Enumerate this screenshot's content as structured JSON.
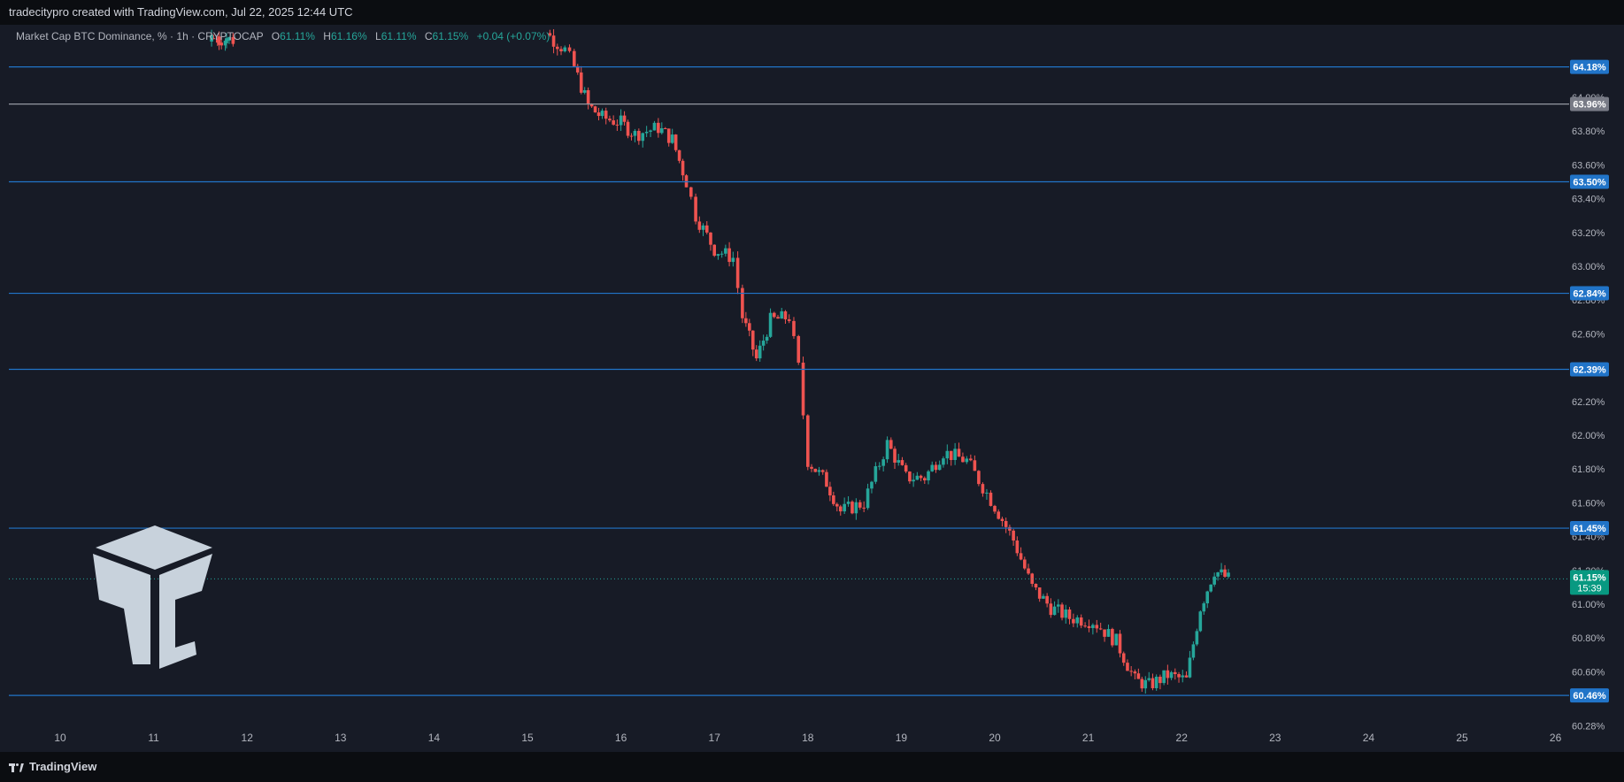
{
  "header": {
    "credit": "tradecitypro created with TradingView.com, Jul 22, 2025 12:44 UTC"
  },
  "legend": {
    "symbol": "Market Cap BTC Dominance, % · 1h · CRYPTOCAP",
    "open_label": "O",
    "open": "61.11%",
    "high_label": "H",
    "high": "61.16%",
    "low_label": "L",
    "low": "61.11%",
    "close_label": "C",
    "close": "61.15%",
    "change": "+0.04 (+0.07%)"
  },
  "footer": {
    "brand": "TradingView"
  },
  "colors": {
    "background": "#171b26",
    "up": "#26a69a",
    "down": "#ef5350",
    "level_line": "#2962ff",
    "level_label": "#2174c8",
    "price_label": "#089981",
    "grey_label": "#787b86",
    "logo": "#c8d2dc"
  },
  "chart_data": {
    "type": "candlestick",
    "y_axis": {
      "ticks": [
        "64.00%",
        "63.80%",
        "63.60%",
        "63.40%",
        "63.20%",
        "63.00%",
        "62.80%",
        "62.60%",
        "62.40%",
        "62.20%",
        "62.00%",
        "61.80%",
        "61.60%",
        "61.40%",
        "61.20%",
        "61.00%",
        "60.80%",
        "60.60%",
        "60.28%"
      ],
      "tick_values": [
        64.0,
        63.8,
        63.6,
        63.4,
        63.2,
        63.0,
        62.8,
        62.6,
        62.4,
        62.2,
        62.0,
        61.8,
        61.6,
        61.4,
        61.2,
        61.0,
        60.8,
        60.6,
        60.28
      ]
    },
    "x_axis": {
      "ticks": [
        "10",
        "11",
        "12",
        "13",
        "14",
        "15",
        "16",
        "17",
        "18",
        "19",
        "20",
        "21",
        "22",
        "23",
        "24",
        "25",
        "26"
      ],
      "tick_days": [
        10,
        11,
        12,
        13,
        14,
        15,
        16,
        17,
        18,
        19,
        20,
        21,
        22,
        23,
        24,
        25,
        26
      ]
    },
    "horizontal_levels": [
      {
        "label": "64.18%",
        "value": 64.18,
        "color": "#2174c8"
      },
      {
        "label": "63.96%",
        "value": 63.96,
        "color": "#787b86"
      },
      {
        "label": "63.50%",
        "value": 63.5,
        "color": "#2174c8"
      },
      {
        "label": "62.84%",
        "value": 62.84,
        "color": "#2174c8"
      },
      {
        "label": "62.39%",
        "value": 62.39,
        "color": "#2174c8"
      },
      {
        "label": "61.45%",
        "value": 61.45,
        "color": "#2174c8"
      },
      {
        "label": "60.46%",
        "value": 60.46,
        "color": "#2174c8"
      }
    ],
    "current_price": {
      "label": "61.15%",
      "countdown": "15:39",
      "value": 61.15
    },
    "trend_points": [
      {
        "day": 11.6,
        "price": 64.35
      },
      {
        "day": 11.85,
        "price": 64.34
      },
      {
        "day": 15.2,
        "price": 64.38
      },
      {
        "day": 15.4,
        "price": 64.28
      },
      {
        "day": 15.5,
        "price": 64.18
      },
      {
        "day": 15.65,
        "price": 63.95
      },
      {
        "day": 15.8,
        "price": 63.88
      },
      {
        "day": 16.0,
        "price": 63.85
      },
      {
        "day": 16.15,
        "price": 63.78
      },
      {
        "day": 16.4,
        "price": 63.82
      },
      {
        "day": 16.55,
        "price": 63.75
      },
      {
        "day": 16.7,
        "price": 63.5
      },
      {
        "day": 16.8,
        "price": 63.3
      },
      {
        "day": 17.0,
        "price": 63.1
      },
      {
        "day": 17.2,
        "price": 63.05
      },
      {
        "day": 17.3,
        "price": 62.7
      },
      {
        "day": 17.45,
        "price": 62.45
      },
      {
        "day": 17.6,
        "price": 62.68
      },
      {
        "day": 17.8,
        "price": 62.7
      },
      {
        "day": 17.9,
        "price": 62.4
      },
      {
        "day": 18.0,
        "price": 61.85
      },
      {
        "day": 18.2,
        "price": 61.72
      },
      {
        "day": 18.35,
        "price": 61.55
      },
      {
        "day": 18.6,
        "price": 61.6
      },
      {
        "day": 18.85,
        "price": 61.95
      },
      {
        "day": 19.05,
        "price": 61.75
      },
      {
        "day": 19.25,
        "price": 61.75
      },
      {
        "day": 19.45,
        "price": 61.9
      },
      {
        "day": 19.7,
        "price": 61.85
      },
      {
        "day": 20.0,
        "price": 61.58
      },
      {
        "day": 20.2,
        "price": 61.38
      },
      {
        "day": 20.4,
        "price": 61.1
      },
      {
        "day": 20.6,
        "price": 60.98
      },
      {
        "day": 20.8,
        "price": 60.92
      },
      {
        "day": 21.05,
        "price": 60.9
      },
      {
        "day": 21.3,
        "price": 60.78
      },
      {
        "day": 21.5,
        "price": 60.55
      },
      {
        "day": 21.65,
        "price": 60.52
      },
      {
        "day": 21.85,
        "price": 60.58
      },
      {
        "day": 22.05,
        "price": 60.55
      },
      {
        "day": 22.2,
        "price": 60.98
      },
      {
        "day": 22.35,
        "price": 61.2
      },
      {
        "day": 22.5,
        "price": 61.15
      }
    ]
  }
}
